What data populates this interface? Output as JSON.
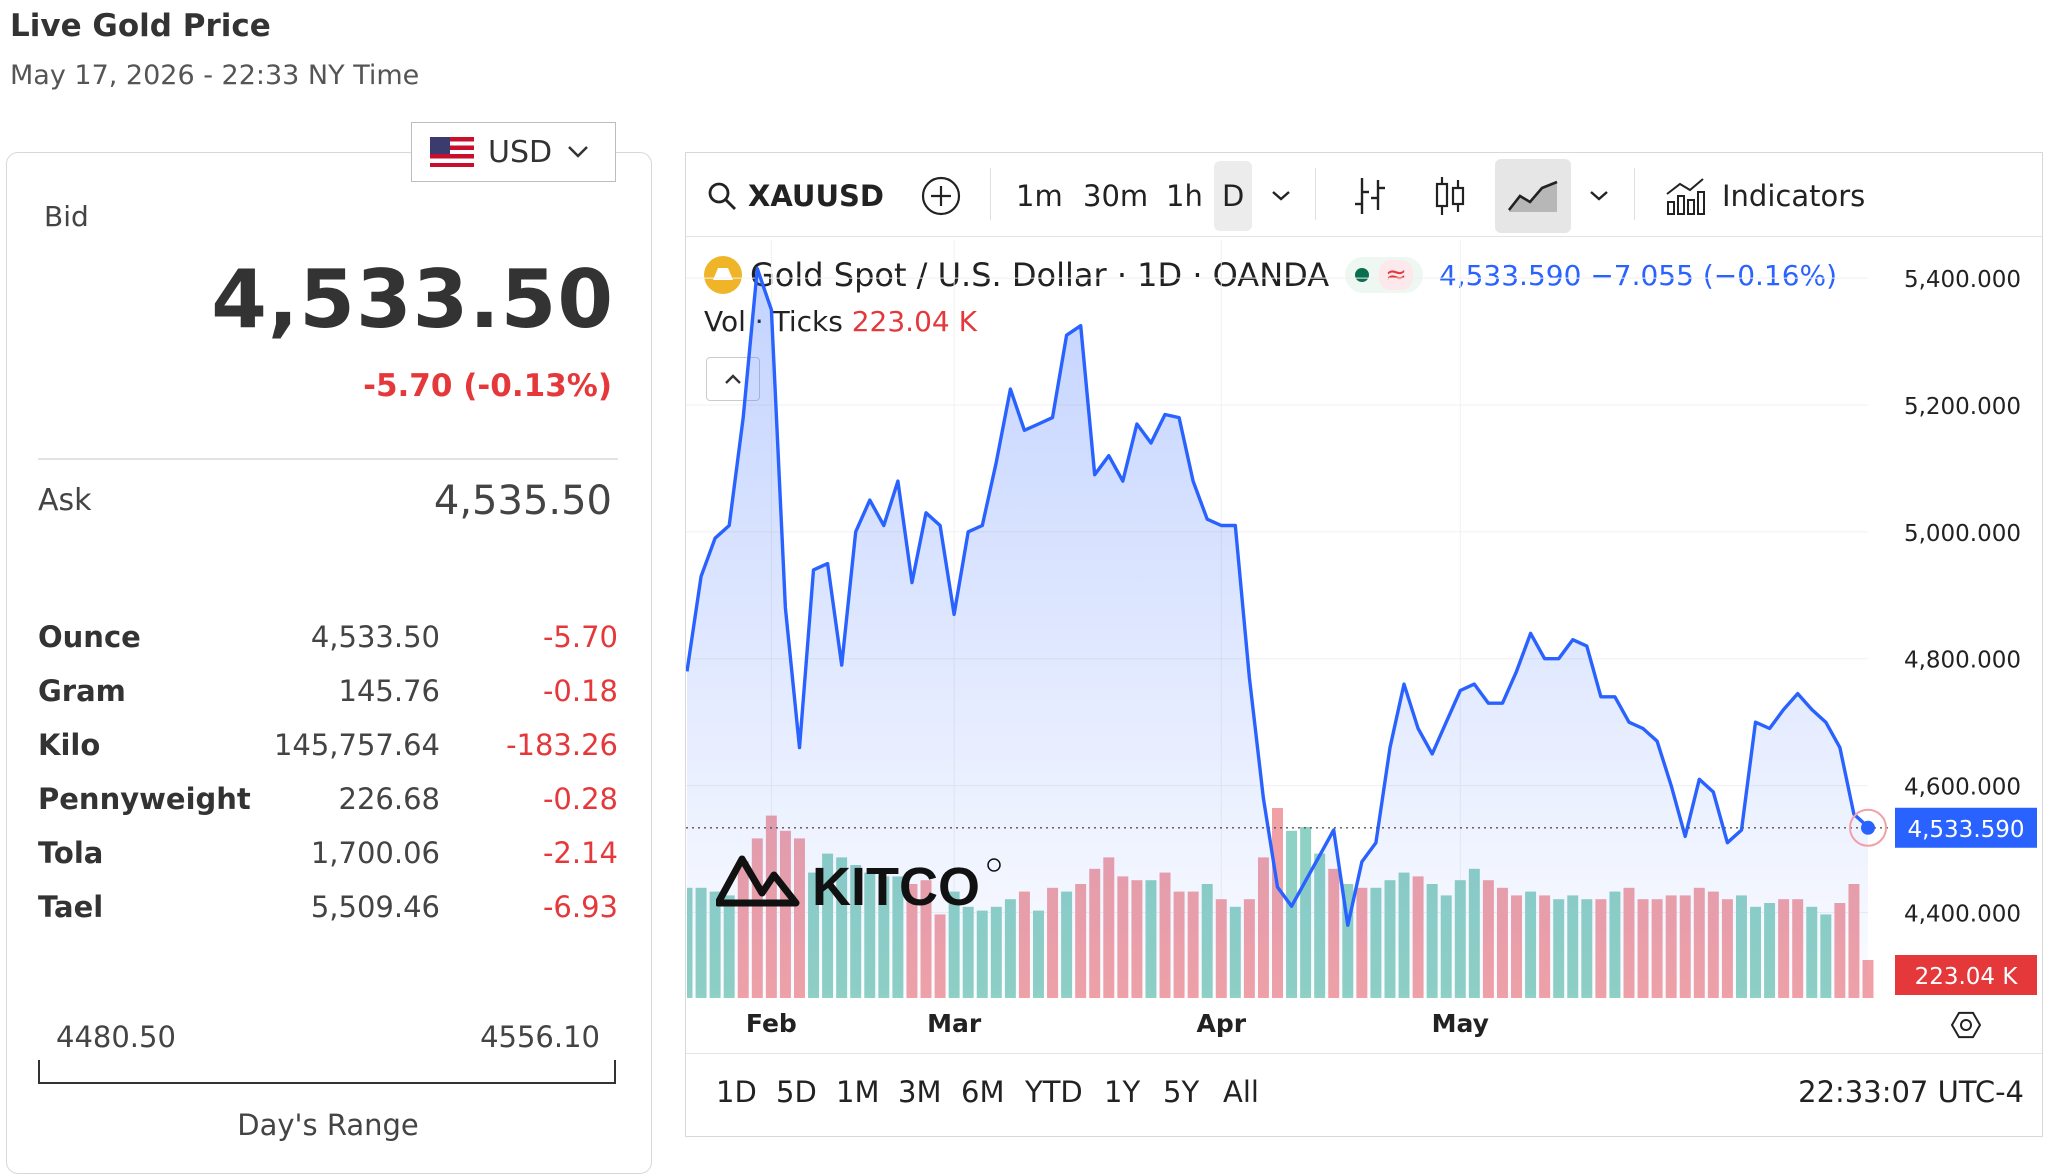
{
  "header": {
    "title": "Live Gold Price",
    "subtitle": "May 17, 2026 - 22:33 NY Time"
  },
  "currency": {
    "selected": "USD"
  },
  "quote": {
    "bid_label": "Bid",
    "bid": "4,533.50",
    "change": "-5.70 (-0.13%)",
    "ask_label": "Ask",
    "ask": "4,535.50",
    "units": [
      {
        "name": "Ounce",
        "price": "4,533.50",
        "change": "-5.70"
      },
      {
        "name": "Gram",
        "price": "145.76",
        "change": "-0.18"
      },
      {
        "name": "Kilo",
        "price": "145,757.64",
        "change": "-183.26"
      },
      {
        "name": "Pennyweight",
        "price": "226.68",
        "change": "-0.28"
      },
      {
        "name": "Tola",
        "price": "1,700.06",
        "change": "-2.14"
      },
      {
        "name": "Tael",
        "price": "5,509.46",
        "change": "-6.93"
      }
    ],
    "range": {
      "low": "4480.50",
      "high": "4556.10",
      "label": "Day's Range"
    }
  },
  "toolbar": {
    "symbol": "XAUUSD",
    "intervals": [
      "1m",
      "30m",
      "1h",
      "D"
    ],
    "indicators_label": "Indicators"
  },
  "legend": {
    "title": "Gold Spot / U.S. Dollar · 1D · OANDA",
    "last": "4,533.590",
    "change": "−7.055 (−0.16%)",
    "vol_label": "Vol · Ticks",
    "vol_value": "223.04 K"
  },
  "ranges": [
    "1D",
    "5D",
    "1M",
    "3M",
    "6M",
    "YTD",
    "1Y",
    "5Y",
    "All"
  ],
  "clock": "22:33:07 UTC-4",
  "logo": {
    "text": "KITCO"
  },
  "colors": {
    "line": "#2962ff",
    "down": "#e5383b",
    "vol_up": "#8fd1c4",
    "vol_down": "#f1a1a6"
  },
  "chart_data": {
    "type": "area",
    "x_ticks": [
      "Feb",
      "Mar",
      "Apr",
      "May"
    ],
    "y_ticks": [
      "5,400.000",
      "5,200.000",
      "5,000.000",
      "4,800.000",
      "4,600.000",
      "4,400.000"
    ],
    "ylim": [
      4270,
      5460
    ],
    "last_price_label": "4,533.590",
    "volume_label": "223.04 K",
    "prices": [
      4780,
      4930,
      4990,
      5010,
      5180,
      5415,
      5350,
      4880,
      4660,
      4940,
      4950,
      4790,
      5000,
      5050,
      5010,
      5080,
      4920,
      5030,
      5010,
      4870,
      5000,
      5010,
      5110,
      5225,
      5160,
      5170,
      5180,
      5310,
      5325,
      5090,
      5120,
      5080,
      5170,
      5140,
      5185,
      5180,
      5080,
      5020,
      5010,
      5010,
      4770,
      4580,
      4440,
      4410,
      4450,
      4490,
      4530,
      4380,
      4480,
      4510,
      4660,
      4760,
      4690,
      4650,
      4700,
      4750,
      4760,
      4730,
      4730,
      4780,
      4840,
      4800,
      4800,
      4830,
      4820,
      4740,
      4740,
      4700,
      4690,
      4670,
      4600,
      4520,
      4610,
      4590,
      4510,
      4530,
      4700,
      4690,
      4720,
      4745,
      4720,
      4700,
      4660,
      4555,
      4535
    ],
    "volumes": [
      290,
      290,
      280,
      270,
      360,
      420,
      480,
      440,
      420,
      330,
      380,
      370,
      350,
      330,
      320,
      320,
      300,
      310,
      220,
      280,
      240,
      230,
      240,
      260,
      280,
      230,
      290,
      280,
      300,
      340,
      370,
      320,
      310,
      310,
      330,
      280,
      280,
      300,
      260,
      240,
      260,
      370,
      500,
      440,
      450,
      380,
      340,
      300,
      290,
      290,
      310,
      330,
      320,
      300,
      270,
      310,
      340,
      310,
      290,
      270,
      280,
      270,
      260,
      270,
      260,
      260,
      280,
      290,
      260,
      260,
      270,
      270,
      290,
      280,
      260,
      270,
      240,
      250,
      260,
      260,
      240,
      220,
      250,
      300,
      100
    ],
    "volume_up": [
      1,
      1,
      1,
      1,
      0,
      0,
      0,
      0,
      0,
      1,
      1,
      1,
      1,
      1,
      1,
      1,
      0,
      0,
      0,
      1,
      1,
      1,
      1,
      1,
      0,
      1,
      0,
      1,
      0,
      0,
      0,
      0,
      0,
      1,
      0,
      0,
      0,
      1,
      0,
      1,
      0,
      0,
      0,
      1,
      1,
      1,
      0,
      1,
      0,
      1,
      1,
      1,
      0,
      1,
      1,
      1,
      1,
      0,
      0,
      0,
      1,
      0,
      1,
      1,
      1,
      0,
      1,
      0,
      0,
      0,
      0,
      0,
      0,
      0,
      0,
      1,
      1,
      1,
      0,
      0,
      1,
      1,
      0,
      0,
      0
    ]
  }
}
